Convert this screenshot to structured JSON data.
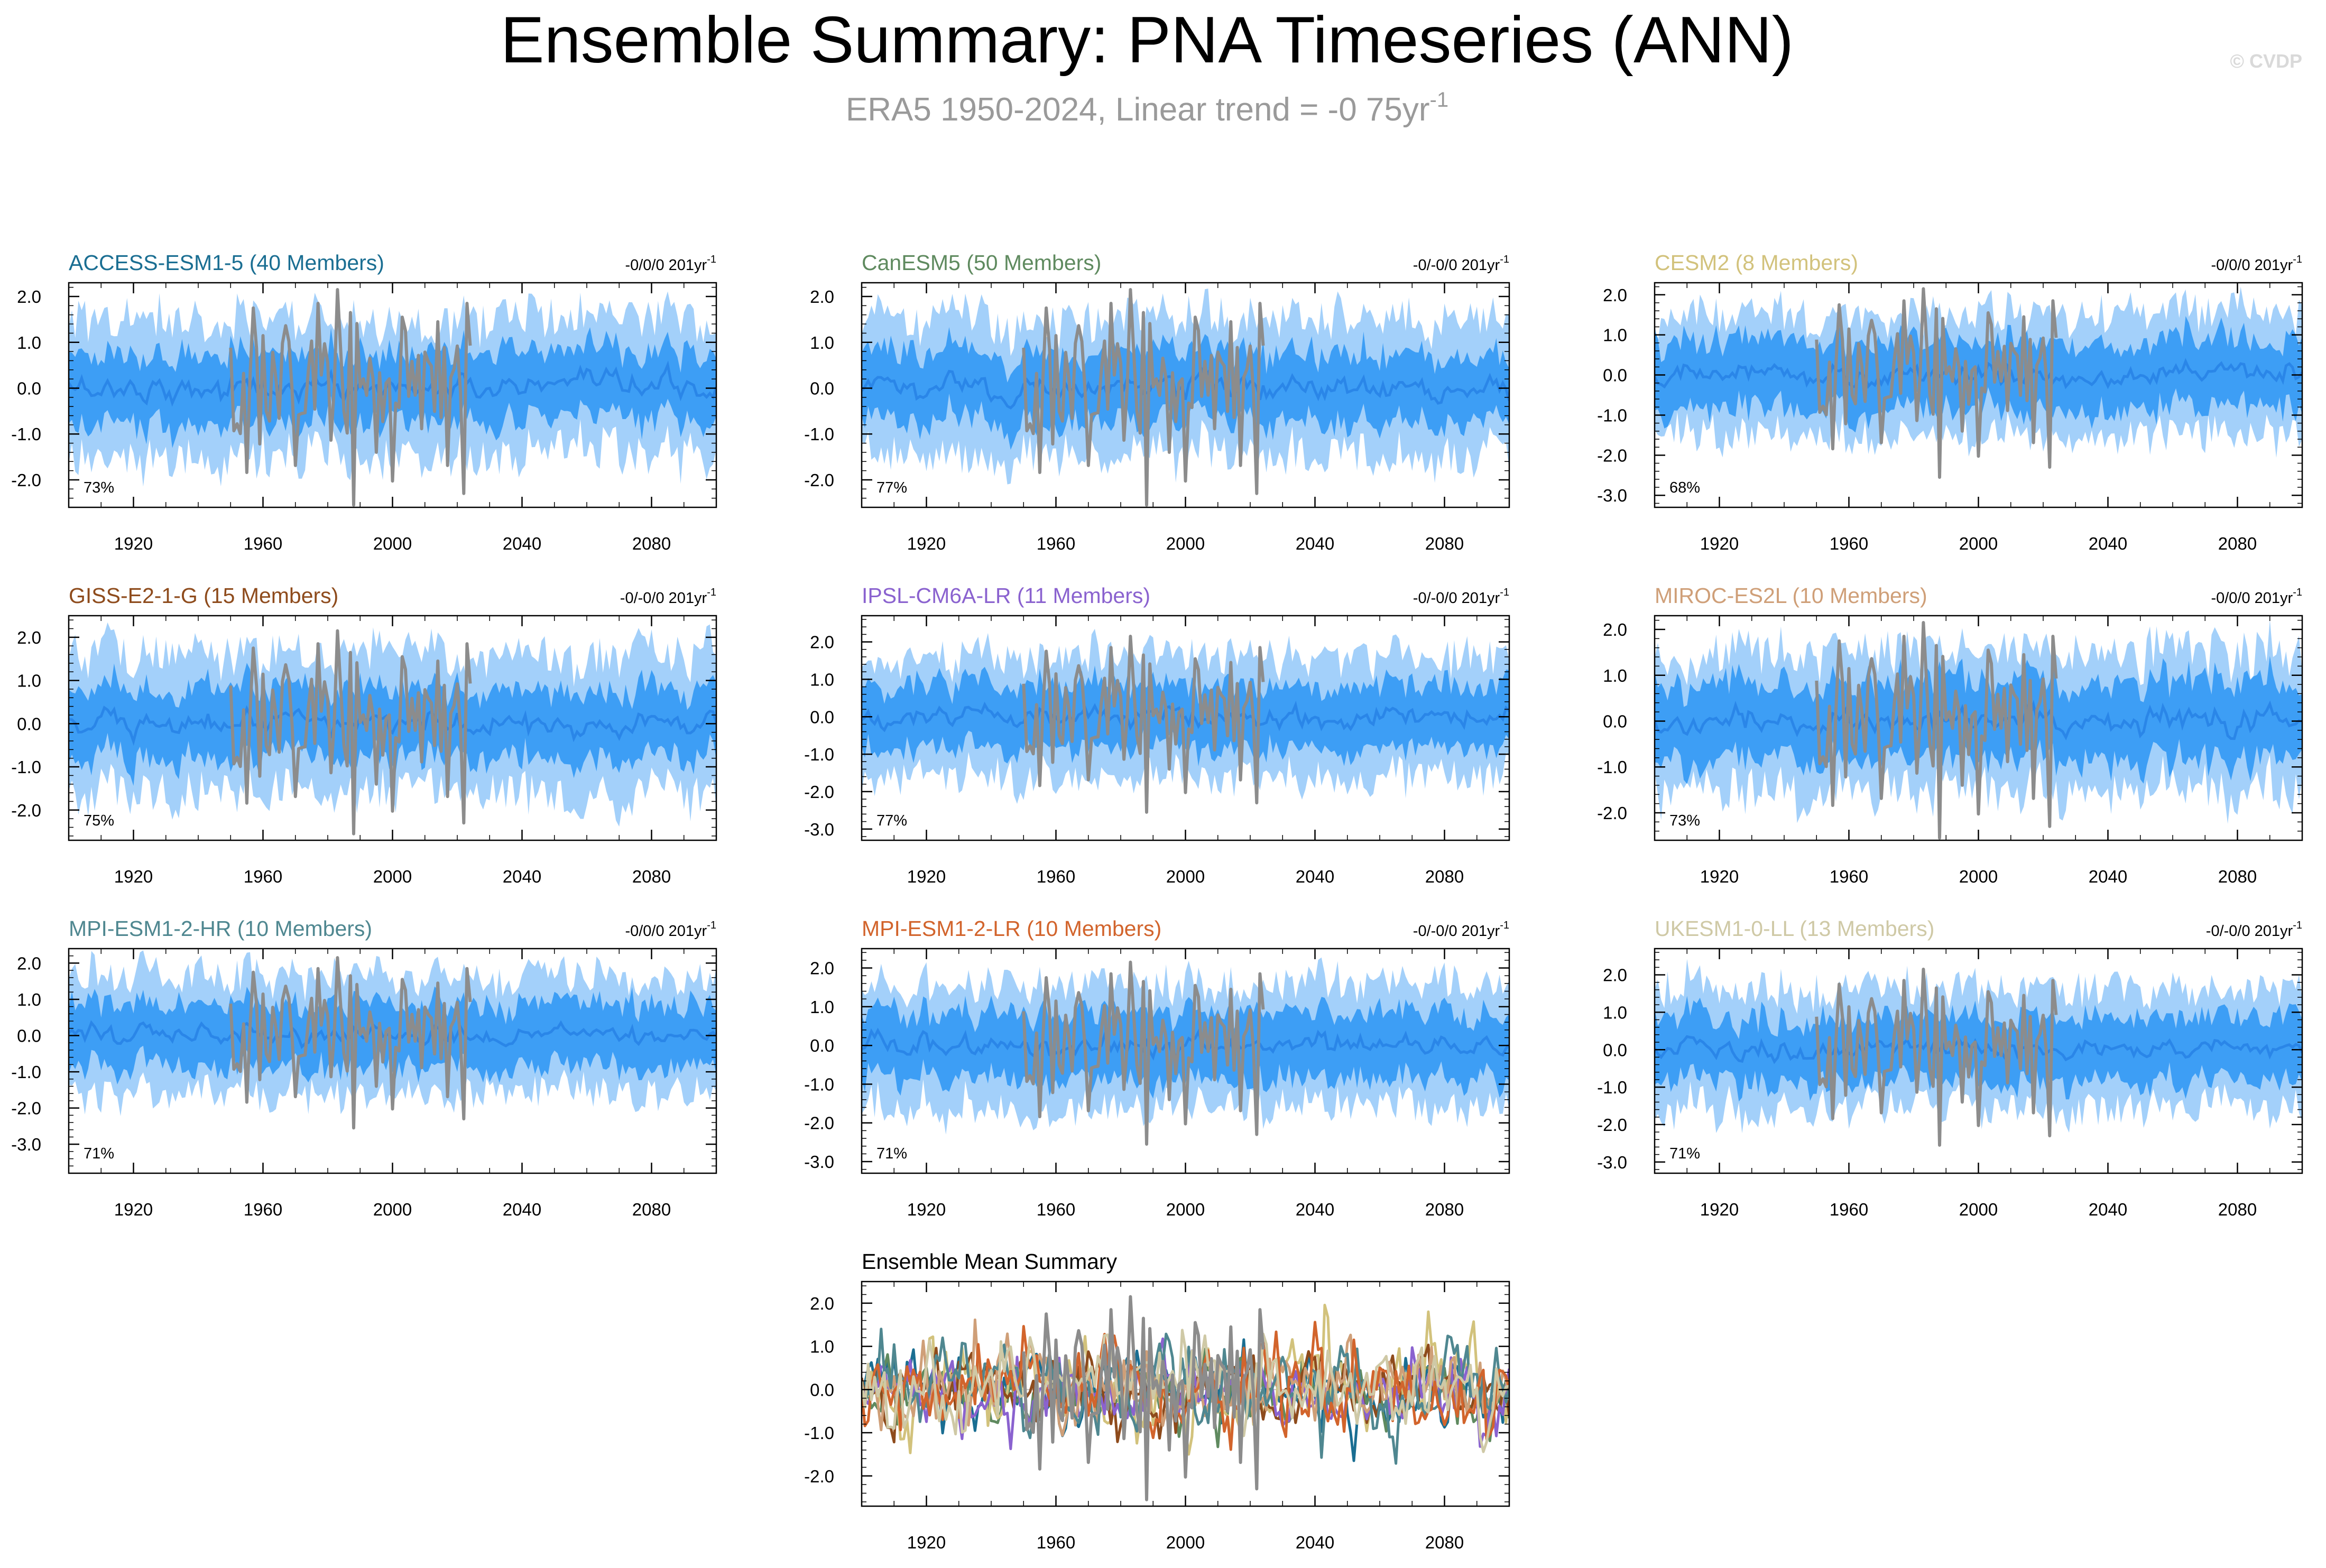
{
  "header": {
    "title": "Ensemble Summary: PNA Timeseries (ANN)",
    "subtitle_main": "ERA5 1950-2024, Linear trend = -0 75yr",
    "subtitle_sup": "-1",
    "copyright": "© CVDP"
  },
  "colors": {
    "band_outer": "#a3d0fa",
    "band_inner": "#3d9ef5",
    "ens_mean_line": "#2a86e8",
    "observations": "#8c8c8c",
    "axis": "#000000"
  },
  "chart_data": [
    {
      "type": "area",
      "title": "ACCESS-ESM1-5 (40 Members)",
      "title_color": "#1a6e92",
      "trend_text": "-0/0/0 201yr",
      "trend_sup": "-1",
      "percent_label": "73%",
      "xlim": [
        1900,
        2100
      ],
      "ylim": [
        -2.6,
        2.3
      ],
      "y_ticks": [
        2.0,
        1.0,
        0.0,
        -1.0,
        -2.0
      ],
      "y_tick_labels": [
        "2.0",
        "1.0",
        "0.0",
        "-1.0",
        "-2.0"
      ],
      "x_ticks": [
        1920,
        1960,
        2000,
        2040,
        2080
      ],
      "x_tick_labels": [
        "1920",
        "1960",
        "2000",
        "2040",
        "2080"
      ],
      "band_outer_halfwidth": 1.5,
      "band_inner_halfwidth": 0.75,
      "series": [
        {
          "name": "",
          "role": "observations",
          "x_range": [
            1950,
            2024
          ],
          "color": "#8c8c8c"
        }
      ]
    },
    {
      "type": "area",
      "title": "CanESM5 (50 Members)",
      "title_color": "#5f8a5f",
      "trend_text": "-0/-0/0 201yr",
      "trend_sup": "-1",
      "percent_label": "77%",
      "xlim": [
        1900,
        2100
      ],
      "ylim": [
        -2.6,
        2.3
      ],
      "y_ticks": [
        2.0,
        1.0,
        0.0,
        -1.0,
        -2.0
      ],
      "y_tick_labels": [
        "2.0",
        "1.0",
        "0.0",
        "-1.0",
        "-2.0"
      ],
      "x_ticks": [
        1920,
        1960,
        2000,
        2040,
        2080
      ],
      "x_tick_labels": [
        "1920",
        "1960",
        "2000",
        "2040",
        "2080"
      ],
      "band_outer_halfwidth": 1.5,
      "band_inner_halfwidth": 0.75,
      "series": [
        {
          "name": "",
          "role": "observations",
          "x_range": [
            1950,
            2024
          ],
          "color": "#8c8c8c"
        }
      ]
    },
    {
      "type": "area",
      "title": "CESM2 (8 Members)",
      "title_color": "#d2c27c",
      "trend_text": "-0/0/0 201yr",
      "trend_sup": "-1",
      "percent_label": "68%",
      "xlim": [
        1900,
        2100
      ],
      "ylim": [
        -3.3,
        2.3
      ],
      "y_ticks": [
        2.0,
        1.0,
        0.0,
        -1.0,
        -2.0,
        -3.0
      ],
      "y_tick_labels": [
        "2.0",
        "1.0",
        "0.0",
        "-1.0",
        "-2.0",
        "-3.0"
      ],
      "x_ticks": [
        1920,
        1960,
        2000,
        2040,
        2080
      ],
      "x_tick_labels": [
        "1920",
        "1960",
        "2000",
        "2040",
        "2080"
      ],
      "band_outer_halfwidth": 1.5,
      "band_inner_halfwidth": 0.85,
      "series": [
        {
          "name": "",
          "role": "observations",
          "x_range": [
            1950,
            2024
          ],
          "color": "#8c8c8c"
        }
      ]
    },
    {
      "type": "area",
      "title": "GISS-E2-1-G (15 Members)",
      "title_color": "#8e4b1c",
      "trend_text": "-0/-0/0 201yr",
      "trend_sup": "-1",
      "percent_label": "75%",
      "xlim": [
        1900,
        2100
      ],
      "ylim": [
        -2.7,
        2.5
      ],
      "y_ticks": [
        2.0,
        1.0,
        0.0,
        -1.0,
        -2.0
      ],
      "y_tick_labels": [
        "2.0",
        "1.0",
        "0.0",
        "-1.0",
        "-2.0"
      ],
      "x_ticks": [
        1920,
        1960,
        2000,
        2040,
        2080
      ],
      "x_tick_labels": [
        "1920",
        "1960",
        "2000",
        "2040",
        "2080"
      ],
      "band_outer_halfwidth": 1.6,
      "band_inner_halfwidth": 0.8,
      "series": [
        {
          "name": "",
          "role": "observations",
          "x_range": [
            1950,
            2024
          ],
          "color": "#8c8c8c"
        }
      ]
    },
    {
      "type": "area",
      "title": "IPSL-CM6A-LR (11 Members)",
      "title_color": "#8a62cf",
      "trend_text": "-0/-0/0 201yr",
      "trend_sup": "-1",
      "percent_label": "77%",
      "xlim": [
        1900,
        2100
      ],
      "ylim": [
        -3.3,
        2.7
      ],
      "y_ticks": [
        2.0,
        1.0,
        0.0,
        -1.0,
        -2.0,
        -3.0
      ],
      "y_tick_labels": [
        "2.0",
        "1.0",
        "0.0",
        "-1.0",
        "-2.0",
        "-3.0"
      ],
      "x_ticks": [
        1920,
        1960,
        2000,
        2040,
        2080
      ],
      "x_tick_labels": [
        "1920",
        "1960",
        "2000",
        "2040",
        "2080"
      ],
      "band_outer_halfwidth": 1.6,
      "band_inner_halfwidth": 0.85,
      "series": [
        {
          "name": "",
          "role": "observations",
          "x_range": [
            1950,
            2024
          ],
          "color": "#8c8c8c"
        }
      ]
    },
    {
      "type": "area",
      "title": "MIROC-ES2L (10 Members)",
      "title_color": "#cf9f78",
      "trend_text": "-0/0/0 201yr",
      "trend_sup": "-1",
      "percent_label": "73%",
      "xlim": [
        1900,
        2100
      ],
      "ylim": [
        -2.6,
        2.3
      ],
      "y_ticks": [
        2.0,
        1.0,
        0.0,
        -1.0,
        -2.0
      ],
      "y_tick_labels": [
        "2.0",
        "1.0",
        "0.0",
        "-1.0",
        "-2.0"
      ],
      "x_ticks": [
        1920,
        1960,
        2000,
        2040,
        2080
      ],
      "x_tick_labels": [
        "1920",
        "1960",
        "2000",
        "2040",
        "2080"
      ],
      "band_outer_halfwidth": 1.5,
      "band_inner_halfwidth": 0.85,
      "series": [
        {
          "name": "",
          "role": "observations",
          "x_range": [
            1950,
            2024
          ],
          "color": "#8c8c8c"
        }
      ]
    },
    {
      "type": "area",
      "title": "MPI-ESM1-2-HR (10 Members)",
      "title_color": "#4f8790",
      "trend_text": "-0/0/0 201yr",
      "trend_sup": "-1",
      "percent_label": "71%",
      "xlim": [
        1900,
        2100
      ],
      "ylim": [
        -3.8,
        2.4
      ],
      "y_ticks": [
        2.0,
        1.0,
        0.0,
        -1.0,
        -2.0,
        -3.0
      ],
      "y_tick_labels": [
        "2.0",
        "1.0",
        "0.0",
        "-1.0",
        "-2.0",
        "-3.0"
      ],
      "x_ticks": [
        1920,
        1960,
        2000,
        2040,
        2080
      ],
      "x_tick_labels": [
        "1920",
        "1960",
        "2000",
        "2040",
        "2080"
      ],
      "band_outer_halfwidth": 1.6,
      "band_inner_halfwidth": 0.85,
      "series": [
        {
          "name": "",
          "role": "observations",
          "x_range": [
            1950,
            2024
          ],
          "color": "#8c8c8c"
        }
      ]
    },
    {
      "type": "area",
      "title": "MPI-ESM1-2-LR (10 Members)",
      "title_color": "#d2642c",
      "trend_text": "-0/-0/0 201yr",
      "trend_sup": "-1",
      "percent_label": "71%",
      "xlim": [
        1900,
        2100
      ],
      "ylim": [
        -3.3,
        2.5
      ],
      "y_ticks": [
        2.0,
        1.0,
        0.0,
        -1.0,
        -2.0,
        -3.0
      ],
      "y_tick_labels": [
        "2.0",
        "1.0",
        "0.0",
        "-1.0",
        "-2.0",
        "-3.0"
      ],
      "x_ticks": [
        1920,
        1960,
        2000,
        2040,
        2080
      ],
      "x_tick_labels": [
        "1920",
        "1960",
        "2000",
        "2040",
        "2080"
      ],
      "band_outer_halfwidth": 1.6,
      "band_inner_halfwidth": 0.85,
      "series": [
        {
          "name": "",
          "role": "observations",
          "x_range": [
            1950,
            2024
          ],
          "color": "#8c8c8c"
        }
      ]
    },
    {
      "type": "area",
      "title": "UKESM1-0-LL (13 Members)",
      "title_color": "#cfc9a6",
      "trend_text": "-0/-0/0 201yr",
      "trend_sup": "-1",
      "percent_label": "71%",
      "xlim": [
        1900,
        2100
      ],
      "ylim": [
        -3.3,
        2.7
      ],
      "y_ticks": [
        2.0,
        1.0,
        0.0,
        -1.0,
        -2.0,
        -3.0
      ],
      "y_tick_labels": [
        "2.0",
        "1.0",
        "0.0",
        "-1.0",
        "-2.0",
        "-3.0"
      ],
      "x_ticks": [
        1920,
        1960,
        2000,
        2040,
        2080
      ],
      "x_tick_labels": [
        "1920",
        "1960",
        "2000",
        "2040",
        "2080"
      ],
      "band_outer_halfwidth": 1.6,
      "band_inner_halfwidth": 0.85,
      "series": [
        {
          "name": "",
          "role": "observations",
          "x_range": [
            1950,
            2024
          ],
          "color": "#8c8c8c"
        }
      ]
    },
    {
      "type": "line",
      "title": "Ensemble Mean Summary",
      "title_color": "#000000",
      "xlim": [
        1900,
        2100
      ],
      "ylim": [
        -2.7,
        2.5
      ],
      "y_ticks": [
        2.0,
        1.0,
        0.0,
        -1.0,
        -2.0
      ],
      "y_tick_labels": [
        "2.0",
        "1.0",
        "0.0",
        "-1.0",
        "-2.0"
      ],
      "x_ticks": [
        1920,
        1960,
        2000,
        2040,
        2080
      ],
      "x_tick_labels": [
        "1920",
        "1960",
        "2000",
        "2040",
        "2080"
      ],
      "series": [
        {
          "name": "",
          "model_ref": "ACCESS-ESM1-5",
          "color": "#1a6e92",
          "amplitude": 0.4
        },
        {
          "name": "",
          "model_ref": "CanESM5",
          "color": "#5f8a5f",
          "amplitude": 0.35
        },
        {
          "name": "",
          "model_ref": "CESM2",
          "color": "#d2c27c",
          "amplitude": 0.5
        },
        {
          "name": "",
          "model_ref": "GISS-E2-1-G",
          "color": "#8e4b1c",
          "amplitude": 0.4
        },
        {
          "name": "",
          "model_ref": "IPSL-CM6A-LR",
          "color": "#8a62cf",
          "amplitude": 0.4
        },
        {
          "name": "",
          "model_ref": "MIROC-ES2L",
          "color": "#cf9f78",
          "amplitude": 0.45
        },
        {
          "name": "",
          "model_ref": "MPI-ESM1-2-HR",
          "color": "#4f8790",
          "amplitude": 0.45
        },
        {
          "name": "",
          "model_ref": "MPI-ESM1-2-LR",
          "color": "#d2642c",
          "amplitude": 0.5
        },
        {
          "name": "",
          "model_ref": "UKESM1-0-LL",
          "color": "#cfc9a6",
          "amplitude": 0.45
        },
        {
          "name": "",
          "role": "observations",
          "x_range": [
            1950,
            2024
          ],
          "color": "#8c8c8c"
        }
      ]
    }
  ]
}
